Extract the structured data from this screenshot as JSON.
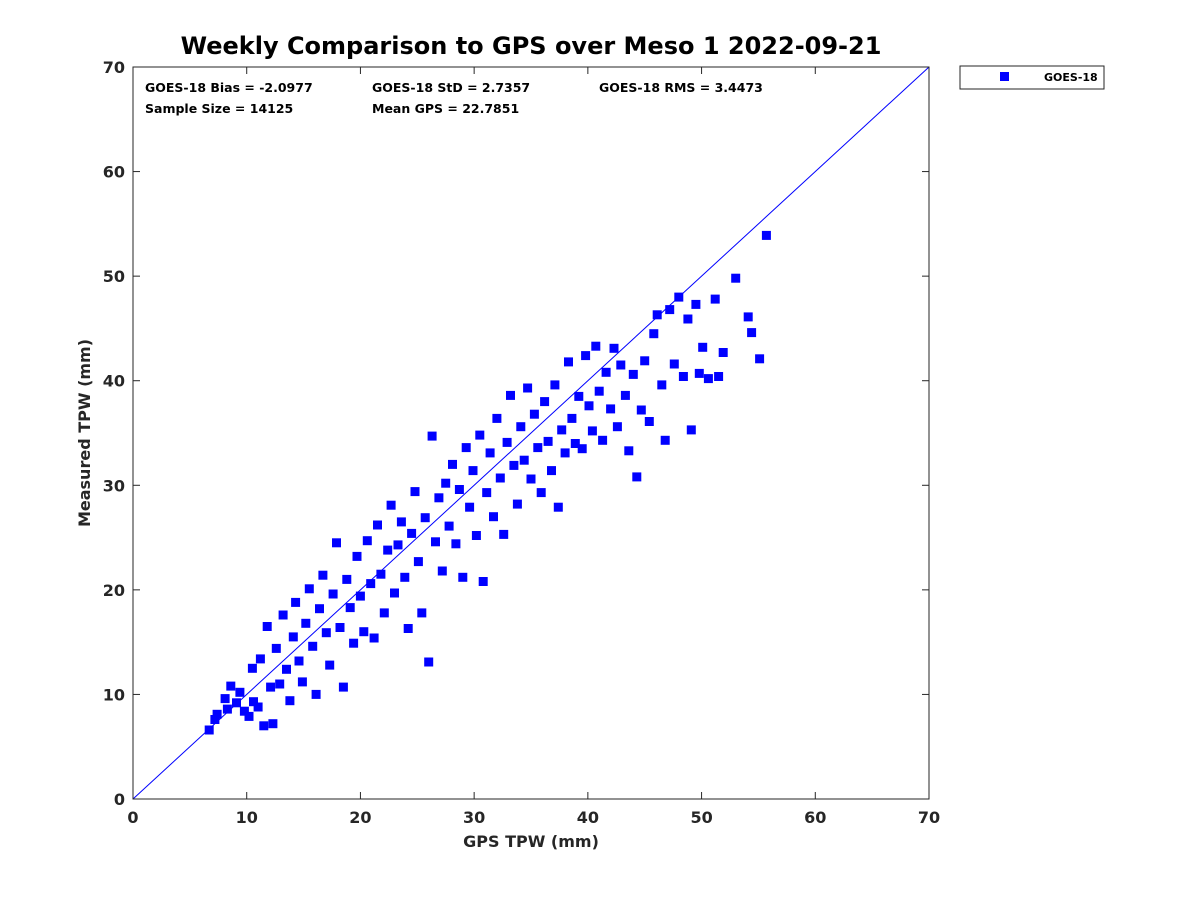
{
  "chart_data": {
    "type": "scatter",
    "title": "Weekly Comparison to GPS over Meso 1 2022-09-21",
    "xlabel": "GPS TPW (mm)",
    "ylabel": "Measured TPW (mm)",
    "xlim": [
      0,
      70
    ],
    "ylim": [
      0,
      70
    ],
    "xticks": [
      "0",
      "10",
      "20",
      "30",
      "40",
      "50",
      "60",
      "70"
    ],
    "yticks": [
      "0",
      "10",
      "20",
      "30",
      "40",
      "50",
      "60",
      "70"
    ],
    "grid": false,
    "legend_position": "outside-top-right",
    "reference_line": {
      "label": "1:1 line",
      "from": [
        0,
        0
      ],
      "to": [
        70,
        70
      ],
      "color": "#0000ff"
    },
    "stats": [
      {
        "id": "bias",
        "text": "GOES-18 Bias = -2.0977"
      },
      {
        "id": "std",
        "text": "GOES-18 StD = 2.7357"
      },
      {
        "id": "rms",
        "text": "GOES-18 RMS = 3.4473"
      },
      {
        "id": "sample",
        "text": "Sample Size = 14125"
      },
      {
        "id": "mean",
        "text": "Mean GPS = 22.7851"
      }
    ],
    "series": [
      {
        "name": "GOES-18",
        "color": "#0000ff",
        "marker": "square",
        "points": [
          [
            6.7,
            6.6
          ],
          [
            7.2,
            7.6
          ],
          [
            7.4,
            8.1
          ],
          [
            8.1,
            9.6
          ],
          [
            8.3,
            8.6
          ],
          [
            8.6,
            10.8
          ],
          [
            9.1,
            9.2
          ],
          [
            9.4,
            10.2
          ],
          [
            9.8,
            8.4
          ],
          [
            10.2,
            7.9
          ],
          [
            10.5,
            12.5
          ],
          [
            10.6,
            9.3
          ],
          [
            11.0,
            8.8
          ],
          [
            11.2,
            13.4
          ],
          [
            11.5,
            7.0
          ],
          [
            11.8,
            16.5
          ],
          [
            12.1,
            10.7
          ],
          [
            12.3,
            7.2
          ],
          [
            12.6,
            14.4
          ],
          [
            12.9,
            11.0
          ],
          [
            13.2,
            17.6
          ],
          [
            13.5,
            12.4
          ],
          [
            13.8,
            9.4
          ],
          [
            14.1,
            15.5
          ],
          [
            14.3,
            18.8
          ],
          [
            14.6,
            13.2
          ],
          [
            14.9,
            11.2
          ],
          [
            15.2,
            16.8
          ],
          [
            15.5,
            20.1
          ],
          [
            15.8,
            14.6
          ],
          [
            16.1,
            10.0
          ],
          [
            16.4,
            18.2
          ],
          [
            16.7,
            21.4
          ],
          [
            17.0,
            15.9
          ],
          [
            17.3,
            12.8
          ],
          [
            17.6,
            19.6
          ],
          [
            17.9,
            24.5
          ],
          [
            18.2,
            16.4
          ],
          [
            18.5,
            10.7
          ],
          [
            18.8,
            21.0
          ],
          [
            19.1,
            18.3
          ],
          [
            19.4,
            14.9
          ],
          [
            19.7,
            23.2
          ],
          [
            20.0,
            19.4
          ],
          [
            20.3,
            16.0
          ],
          [
            20.6,
            24.7
          ],
          [
            20.9,
            20.6
          ],
          [
            21.2,
            15.4
          ],
          [
            21.5,
            26.2
          ],
          [
            21.8,
            21.5
          ],
          [
            22.1,
            17.8
          ],
          [
            22.4,
            23.8
          ],
          [
            22.7,
            28.1
          ],
          [
            23.0,
            19.7
          ],
          [
            23.3,
            24.3
          ],
          [
            23.6,
            26.5
          ],
          [
            23.9,
            21.2
          ],
          [
            24.2,
            16.3
          ],
          [
            24.5,
            25.4
          ],
          [
            24.8,
            29.4
          ],
          [
            25.1,
            22.7
          ],
          [
            25.4,
            17.8
          ],
          [
            25.7,
            26.9
          ],
          [
            26.0,
            13.1
          ],
          [
            26.3,
            34.7
          ],
          [
            26.6,
            24.6
          ],
          [
            26.9,
            28.8
          ],
          [
            27.2,
            21.8
          ],
          [
            27.5,
            30.2
          ],
          [
            27.8,
            26.1
          ],
          [
            28.1,
            32.0
          ],
          [
            28.4,
            24.4
          ],
          [
            28.7,
            29.6
          ],
          [
            29.0,
            21.2
          ],
          [
            29.3,
            33.6
          ],
          [
            29.6,
            27.9
          ],
          [
            29.9,
            31.4
          ],
          [
            30.2,
            25.2
          ],
          [
            30.5,
            34.8
          ],
          [
            30.8,
            20.8
          ],
          [
            31.1,
            29.3
          ],
          [
            31.4,
            33.1
          ],
          [
            31.7,
            27.0
          ],
          [
            32.0,
            36.4
          ],
          [
            32.3,
            30.7
          ],
          [
            32.6,
            25.3
          ],
          [
            32.9,
            34.1
          ],
          [
            33.2,
            38.6
          ],
          [
            33.5,
            31.9
          ],
          [
            33.8,
            28.2
          ],
          [
            34.1,
            35.6
          ],
          [
            34.4,
            32.4
          ],
          [
            34.7,
            39.3
          ],
          [
            35.0,
            30.6
          ],
          [
            35.3,
            36.8
          ],
          [
            35.6,
            33.6
          ],
          [
            35.9,
            29.3
          ],
          [
            36.2,
            38.0
          ],
          [
            36.5,
            34.2
          ],
          [
            36.8,
            31.4
          ],
          [
            37.1,
            39.6
          ],
          [
            37.4,
            27.9
          ],
          [
            37.7,
            35.3
          ],
          [
            38.0,
            33.1
          ],
          [
            38.3,
            41.8
          ],
          [
            38.6,
            36.4
          ],
          [
            38.9,
            34.0
          ],
          [
            39.2,
            38.5
          ],
          [
            39.5,
            33.5
          ],
          [
            39.8,
            42.4
          ],
          [
            40.1,
            37.6
          ],
          [
            40.4,
            35.2
          ],
          [
            40.7,
            43.3
          ],
          [
            41.0,
            39.0
          ],
          [
            41.3,
            34.3
          ],
          [
            41.6,
            40.8
          ],
          [
            42.0,
            37.3
          ],
          [
            42.3,
            43.1
          ],
          [
            42.6,
            35.6
          ],
          [
            42.9,
            41.5
          ],
          [
            43.3,
            38.6
          ],
          [
            43.6,
            33.3
          ],
          [
            44.0,
            40.6
          ],
          [
            44.3,
            30.8
          ],
          [
            44.7,
            37.2
          ],
          [
            45.0,
            41.9
          ],
          [
            45.4,
            36.1
          ],
          [
            45.8,
            44.5
          ],
          [
            46.1,
            46.3
          ],
          [
            46.5,
            39.6
          ],
          [
            46.8,
            34.3
          ],
          [
            47.2,
            46.8
          ],
          [
            47.6,
            41.6
          ],
          [
            48.0,
            48.0
          ],
          [
            48.4,
            40.4
          ],
          [
            48.8,
            45.9
          ],
          [
            49.1,
            35.3
          ],
          [
            49.5,
            47.3
          ],
          [
            49.8,
            40.7
          ],
          [
            50.1,
            43.2
          ],
          [
            50.6,
            40.2
          ],
          [
            51.2,
            47.8
          ],
          [
            51.5,
            40.4
          ],
          [
            51.9,
            42.7
          ],
          [
            53.0,
            49.8
          ],
          [
            54.1,
            46.1
          ],
          [
            54.4,
            44.6
          ],
          [
            55.1,
            42.1
          ],
          [
            55.7,
            53.9
          ]
        ]
      }
    ]
  }
}
